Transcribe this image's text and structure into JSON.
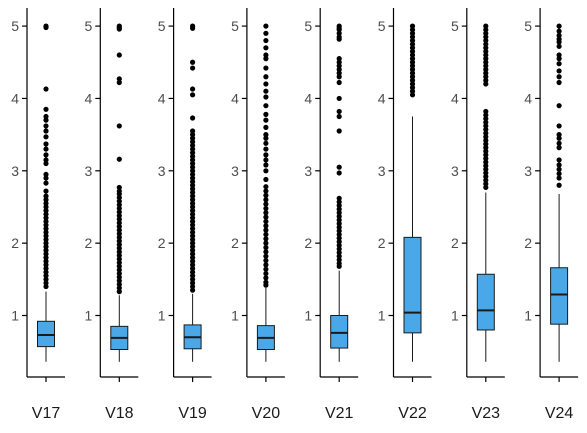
{
  "chart_data": {
    "type": "boxplot",
    "title": "",
    "xlabel": "",
    "ylabel": "",
    "ylim": [
      0.15,
      5.25
    ],
    "yticks": [
      1,
      2,
      3,
      4,
      5
    ],
    "grid": false,
    "colors": {
      "box_fill": "#4aa8e8",
      "box_stroke": "#1a1a1a",
      "point": "#000000",
      "axis": "#000000"
    },
    "panels": [
      {
        "label": "V17",
        "whisker_low": 0.36,
        "q1": 0.57,
        "median": 0.73,
        "q3": 0.92,
        "whisker_high": 1.33,
        "outliers": [
          5.0,
          4.98,
          4.13,
          3.85,
          3.75,
          3.7,
          3.62,
          3.55,
          3.47,
          3.37,
          3.3,
          3.22,
          3.15,
          3.1,
          2.95,
          2.9,
          2.83,
          2.72,
          2.65,
          2.6,
          2.55,
          2.5,
          2.45,
          2.4,
          2.35,
          2.3,
          2.25,
          2.2,
          2.15,
          2.1,
          2.05,
          2.0,
          1.95,
          1.9,
          1.85,
          1.8,
          1.75,
          1.7,
          1.65,
          1.6,
          1.55,
          1.5,
          1.45,
          1.4
        ]
      },
      {
        "label": "V18",
        "whisker_low": 0.36,
        "q1": 0.53,
        "median": 0.69,
        "q3": 0.85,
        "whisker_high": 1.28,
        "outliers": [
          5.0,
          4.98,
          4.96,
          4.6,
          4.27,
          4.22,
          3.62,
          3.16,
          2.77,
          2.72,
          2.68,
          2.63,
          2.58,
          2.53,
          2.48,
          2.43,
          2.38,
          2.33,
          2.28,
          2.23,
          2.18,
          2.13,
          2.08,
          2.03,
          1.98,
          1.93,
          1.88,
          1.83,
          1.78,
          1.73,
          1.68,
          1.63,
          1.58,
          1.53,
          1.48,
          1.43,
          1.38,
          1.33
        ]
      },
      {
        "label": "V19",
        "whisker_low": 0.36,
        "q1": 0.54,
        "median": 0.7,
        "q3": 0.87,
        "whisker_high": 1.3,
        "outliers": [
          5.0,
          4.97,
          4.5,
          4.42,
          4.13,
          4.05,
          3.73,
          3.55,
          3.5,
          3.45,
          3.4,
          3.35,
          3.3,
          3.25,
          3.2,
          3.15,
          3.1,
          3.05,
          3.0,
          2.95,
          2.9,
          2.85,
          2.8,
          2.75,
          2.7,
          2.65,
          2.6,
          2.55,
          2.5,
          2.45,
          2.4,
          2.35,
          2.3,
          2.25,
          2.2,
          2.15,
          2.1,
          2.05,
          2.0,
          1.95,
          1.9,
          1.85,
          1.8,
          1.75,
          1.7,
          1.65,
          1.6,
          1.55,
          1.5,
          1.45,
          1.4,
          1.35
        ]
      },
      {
        "label": "V20",
        "whisker_low": 0.36,
        "q1": 0.53,
        "median": 0.69,
        "q3": 0.86,
        "whisker_high": 1.38,
        "outliers": [
          5.0,
          4.9,
          4.8,
          4.7,
          4.6,
          4.55,
          4.42,
          4.3,
          4.2,
          4.1,
          4.02,
          3.9,
          3.78,
          3.7,
          3.6,
          3.5,
          3.45,
          3.38,
          3.3,
          3.22,
          3.15,
          3.08,
          3.0,
          2.88,
          2.78,
          2.72,
          2.66,
          2.6,
          2.54,
          2.48,
          2.42,
          2.36,
          2.3,
          2.24,
          2.18,
          2.12,
          2.06,
          2.0,
          1.94,
          1.88,
          1.82,
          1.76,
          1.7,
          1.64,
          1.58,
          1.52,
          1.46,
          1.42
        ]
      },
      {
        "label": "V21",
        "whisker_low": 0.36,
        "q1": 0.55,
        "median": 0.76,
        "q3": 1.0,
        "whisker_high": 1.62,
        "outliers": [
          5.0,
          4.97,
          4.95,
          4.9,
          4.85,
          4.82,
          4.55,
          4.5,
          4.45,
          4.4,
          4.35,
          4.3,
          4.22,
          4.0,
          3.82,
          3.75,
          3.55,
          3.05,
          2.97,
          2.62,
          2.57,
          2.52,
          2.47,
          2.42,
          2.37,
          2.32,
          2.27,
          2.22,
          2.17,
          2.12,
          2.07,
          2.02,
          1.97,
          1.92,
          1.87,
          1.82,
          1.77,
          1.72,
          1.68
        ]
      },
      {
        "label": "V22",
        "whisker_low": 0.36,
        "q1": 0.76,
        "median": 1.04,
        "q3": 2.08,
        "whisker_high": 3.75,
        "outliers": [
          5.0,
          4.95,
          4.9,
          4.85,
          4.8,
          4.75,
          4.7,
          4.65,
          4.6,
          4.55,
          4.5,
          4.45,
          4.4,
          4.35,
          4.3,
          4.25,
          4.2,
          4.15,
          4.1,
          4.05
        ]
      },
      {
        "label": "V23",
        "whisker_low": 0.36,
        "q1": 0.8,
        "median": 1.07,
        "q3": 1.57,
        "whisker_high": 2.7,
        "outliers": [
          5.0,
          4.95,
          4.9,
          4.85,
          4.8,
          4.75,
          4.7,
          4.65,
          4.6,
          4.55,
          4.5,
          4.45,
          4.4,
          4.35,
          4.3,
          4.25,
          4.2,
          3.82,
          3.77,
          3.72,
          3.67,
          3.62,
          3.57,
          3.52,
          3.47,
          3.42,
          3.37,
          3.32,
          3.27,
          3.22,
          3.17,
          3.12,
          3.07,
          3.02,
          2.97,
          2.92,
          2.87,
          2.82,
          2.77
        ]
      },
      {
        "label": "V24",
        "whisker_low": 0.36,
        "q1": 0.88,
        "median": 1.29,
        "q3": 1.66,
        "whisker_high": 2.68,
        "outliers": [
          5.0,
          4.93,
          4.87,
          4.82,
          4.78,
          4.72,
          4.6,
          4.55,
          4.48,
          4.38,
          4.3,
          4.22,
          3.9,
          3.62,
          3.5,
          3.45,
          3.38,
          3.32,
          3.15,
          3.08,
          3.02,
          2.96,
          2.9,
          2.8
        ]
      }
    ]
  }
}
